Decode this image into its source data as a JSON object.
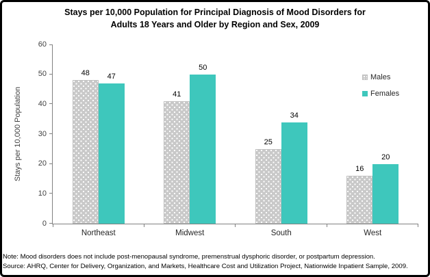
{
  "title": {
    "line1": "Stays per 10,000 Population for Principal Diagnosis of Mood Disorders for",
    "line2": "Adults 18 Years and Older by Region and Sex, 2009"
  },
  "chart_data": {
    "type": "bar",
    "title": "Stays per 10,000 Population for Principal Diagnosis of Mood Disorders for Adults 18 Years and Older by Region and Sex, 2009",
    "categories": [
      "Northeast",
      "Midwest",
      "South",
      "West"
    ],
    "series": [
      {
        "name": "Males",
        "values": [
          48,
          41,
          25,
          16
        ],
        "color": "#c9c9c9",
        "pattern": "dots"
      },
      {
        "name": "Females",
        "values": [
          47,
          50,
          34,
          20
        ],
        "color": "#3ec7bc",
        "pattern": "solid"
      }
    ],
    "xlabel": "",
    "ylabel": "Stays per 10,000 Population",
    "ylim": [
      0,
      60
    ],
    "ytick_step": 10,
    "grid": false,
    "legend_position": "top-right-inside",
    "data_labels": true,
    "axis_color": "#808080"
  },
  "notes": {
    "note": "Note: Mood disorders does not include post-menopausal syndrome, premenstrual dysphoric disorder, or postpartum depression.",
    "source": "Source: AHRQ, Center for Delivery, Organization, and Markets, Healthcare Cost and Utilization Project, Nationwide Inpatient Sample, 2009."
  }
}
